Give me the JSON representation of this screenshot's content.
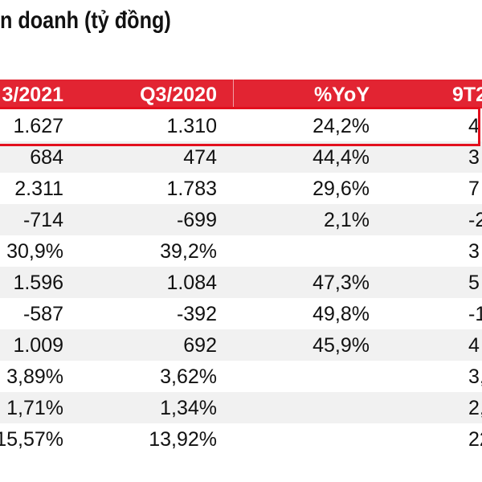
{
  "title": "n doanh (tỷ đồng)",
  "colors": {
    "header_bg": "#e22432",
    "header_text": "#ffffff",
    "row_shade": "#f1f1f1",
    "highlight_border": "#e3101e"
  },
  "table": {
    "headers": [
      "3/2021",
      "Q3/2020",
      "%YoY",
      "9T2"
    ],
    "rows": [
      [
        "1.627",
        "1.310",
        "24,2%",
        "4"
      ],
      [
        "684",
        "474",
        "44,4%",
        "3"
      ],
      [
        "2.311",
        "1.783",
        "29,6%",
        "7"
      ],
      [
        "-714",
        "-699",
        "2,1%",
        "-2"
      ],
      [
        "30,9%",
        "39,2%",
        "",
        "3"
      ],
      [
        "1.596",
        "1.084",
        "47,3%",
        "5"
      ],
      [
        "-587",
        "-392",
        "49,8%",
        "-1"
      ],
      [
        "1.009",
        "692",
        "45,9%",
        "4"
      ],
      [
        "3,89%",
        "3,62%",
        "",
        "3,"
      ],
      [
        "1,71%",
        "1,34%",
        "",
        "2,"
      ],
      [
        "15,57%",
        "13,92%",
        "",
        "22,"
      ]
    ],
    "highlighted_row": 0
  }
}
